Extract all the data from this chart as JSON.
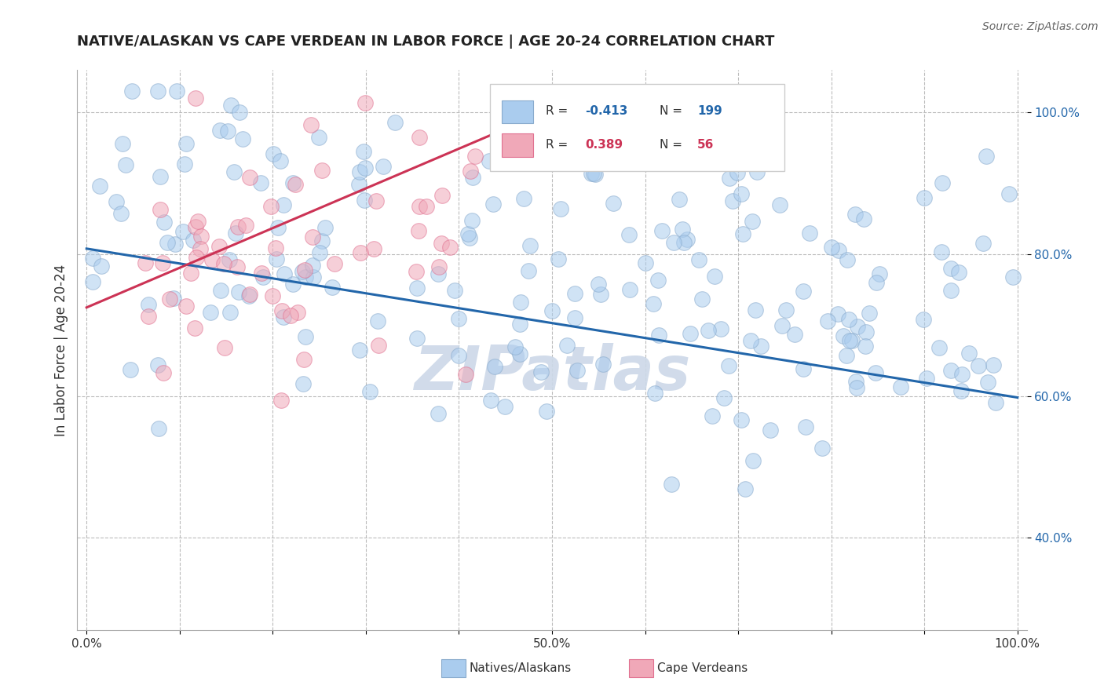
{
  "title": "NATIVE/ALASKAN VS CAPE VERDEAN IN LABOR FORCE | AGE 20-24 CORRELATION CHART",
  "source_text": "Source: ZipAtlas.com",
  "ylabel": "In Labor Force | Age 20-24",
  "xlim": [
    -0.01,
    1.01
  ],
  "ylim": [
    0.27,
    1.06
  ],
  "blue_R": "-0.413",
  "blue_N": "199",
  "pink_R": "0.389",
  "pink_N": "56",
  "blue_color": "#aaccee",
  "pink_color": "#f0a8b8",
  "blue_edge_color": "#88aacc",
  "pink_edge_color": "#e07090",
  "blue_line_color": "#2266aa",
  "pink_line_color": "#cc3355",
  "watermark_color": "#ccd8e8",
  "watermark_text": "ZIPatlas",
  "blue_line_y0": 0.808,
  "blue_line_y1": 0.598,
  "pink_line_x0": 0.0,
  "pink_line_y0": 0.725,
  "pink_line_x1": 0.5,
  "pink_line_y1": 1.005
}
